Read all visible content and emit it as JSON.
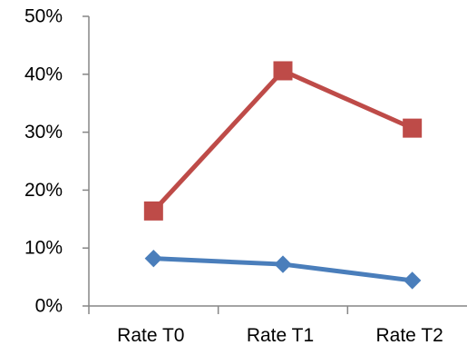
{
  "chart_data": {
    "type": "line",
    "categories": [
      "Rate T0",
      "Rate T1",
      "Rate T2"
    ],
    "y_tick_labels": [
      "0%",
      "10%",
      "20%",
      "30%",
      "40%",
      "50%"
    ],
    "ylim": [
      0,
      50
    ],
    "grid": false,
    "legend": "none",
    "series": [
      {
        "values": [
          8.2,
          7.2,
          4.4
        ],
        "color": "#4a7ebb",
        "marker": "diamond"
      },
      {
        "values": [
          16.4,
          40.6,
          30.7
        ],
        "color": "#be4b48",
        "marker": "square"
      }
    ]
  }
}
